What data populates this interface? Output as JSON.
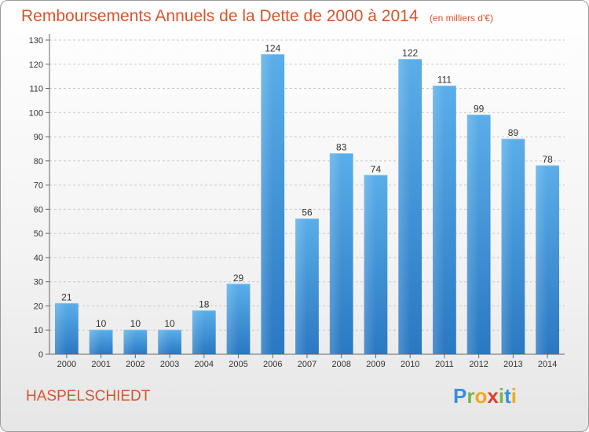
{
  "chart_data": {
    "type": "bar",
    "title": "Remboursements Annuels de la Dette de 2000 à 2014",
    "subtitle": "(en milliers d'€)",
    "categories": [
      "2000",
      "2001",
      "2002",
      "2003",
      "2004",
      "2005",
      "2006",
      "2007",
      "2008",
      "2009",
      "2010",
      "2011",
      "2012",
      "2013",
      "2014"
    ],
    "values": [
      21,
      10,
      10,
      10,
      18,
      29,
      124,
      56,
      83,
      74,
      122,
      111,
      99,
      89,
      78
    ],
    "xlabel": "",
    "ylabel": "",
    "ylim": [
      0,
      130
    ],
    "yticks": [
      0,
      10,
      20,
      30,
      40,
      50,
      60,
      70,
      80,
      90,
      100,
      110,
      120,
      130
    ],
    "grid": "horizontal dashed",
    "bar_color": "#4a9fe0",
    "legend": "none"
  },
  "footer": {
    "commune": "HASPELSCHIEDT"
  },
  "logo": {
    "letters": [
      "P",
      "r",
      "o",
      "x",
      "i",
      "t",
      "i"
    ],
    "colors": [
      "#3b8ed8",
      "#7ab648",
      "#f2a81d",
      "#e23b2e",
      "#7ab648",
      "#3b8ed8",
      "#f2a81d"
    ]
  }
}
